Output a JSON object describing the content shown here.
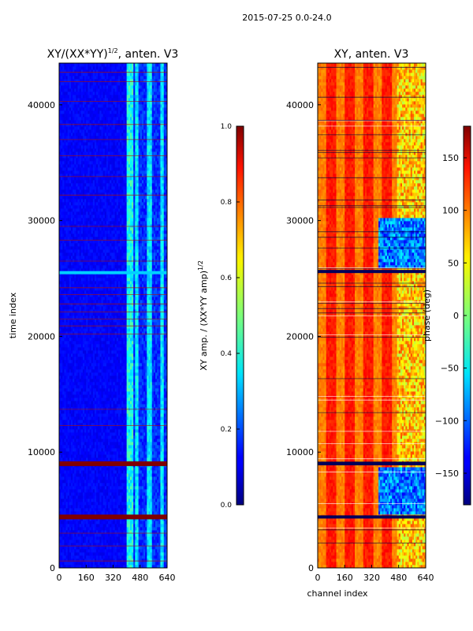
{
  "suptitle": "2015-07-25 0.0-24.0",
  "chart_data": [
    {
      "type": "heatmap",
      "title_main": "XY/(XX*YY)",
      "title_sup": "1/2",
      "title_tail": ", anten. V3",
      "xlabel": "",
      "ylabel": "time index",
      "xlim": [
        0,
        640
      ],
      "ylim": [
        0,
        43600
      ],
      "xticks": [
        0,
        160,
        320,
        480,
        640
      ],
      "yticks": [
        0,
        10000,
        20000,
        30000,
        40000
      ],
      "colorbar": {
        "label_main": "XY amp. / (XX*YY amp)",
        "label_sup": "1/2",
        "range": [
          0.0,
          1.0
        ],
        "ticks": [
          "0.0",
          "0.2",
          "0.4",
          "0.6",
          "0.8",
          "1.0"
        ],
        "colormap": "jet"
      },
      "features": {
        "saturated_bands": [
          4400,
          9000,
          25500
        ],
        "faint_lines": [
          600,
          1900,
          3000,
          12300,
          13700,
          20200,
          20900,
          21500,
          22100,
          22800,
          23600,
          24200,
          26500,
          28300,
          29500,
          32200,
          33800,
          35600,
          37000,
          38300,
          40300,
          42000,
          42800
        ],
        "bright_channel_band": [
          405,
          640
        ],
        "background_value": 0.1
      }
    },
    {
      "type": "heatmap",
      "title_main": "XY, anten. V3",
      "xlabel": "channel index",
      "ylabel": "",
      "xlim": [
        0,
        640
      ],
      "ylim": [
        0,
        43600
      ],
      "xticks": [
        0,
        160,
        320,
        480,
        640
      ],
      "yticks": [
        0,
        10000,
        20000,
        30000,
        40000
      ],
      "colorbar": {
        "label": "phase (deg)",
        "range": [
          -180,
          180
        ],
        "ticks": [
          "150",
          "100",
          "50",
          "0",
          "−50",
          "−100",
          "−150"
        ],
        "tick_values": [
          150,
          100,
          50,
          0,
          -50,
          -100,
          -150
        ],
        "colormap": "jet"
      },
      "features": {
        "dark_bands": [
          4400,
          9000,
          25600
        ],
        "blue_region_rows": [
          [
            26000,
            30200
          ],
          [
            4600,
            8600
          ]
        ],
        "blue_region_channels": [
          360,
          640
        ]
      }
    }
  ]
}
